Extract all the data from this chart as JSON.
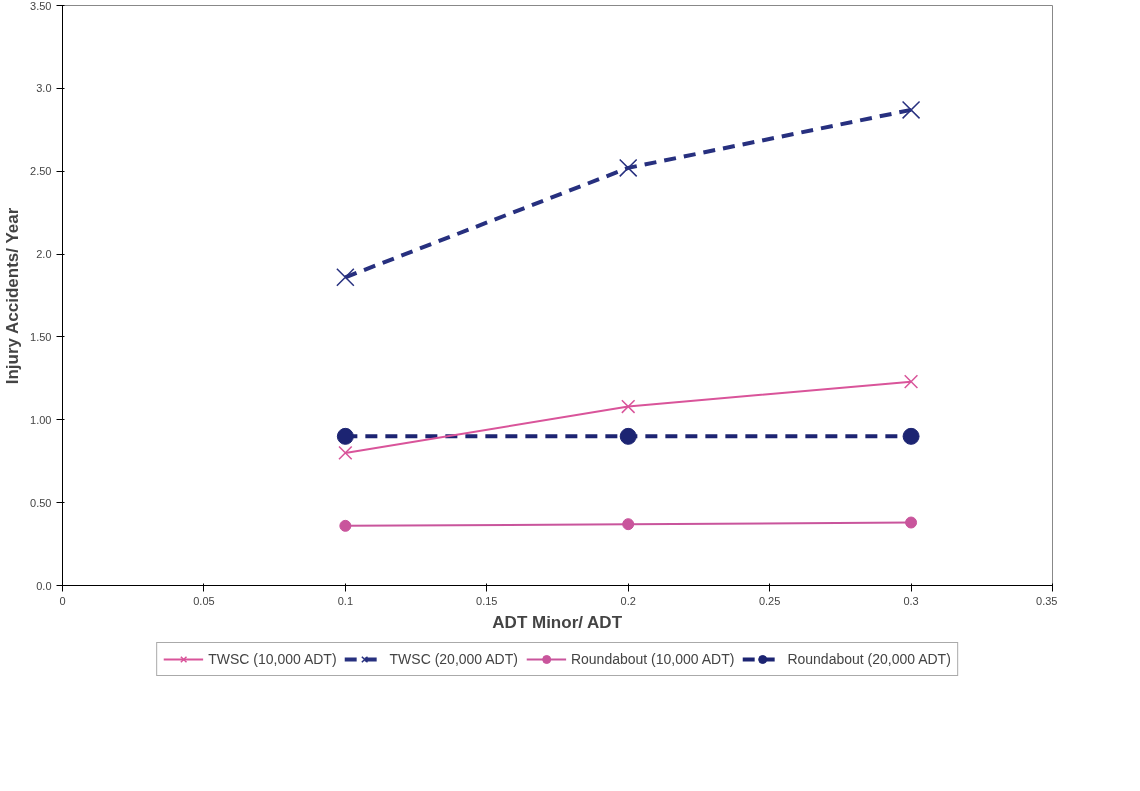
{
  "chart_data": {
    "type": "line",
    "xlabel": "ADT Minor/ ADT",
    "ylabel": "Injury Accidents/ Year",
    "x": [
      0.1,
      0.2,
      0.3
    ],
    "xlim": [
      0,
      0.35
    ],
    "xticks": [
      0,
      0.05,
      0.1,
      0.15,
      0.2,
      0.25,
      0.3,
      0.35
    ],
    "ylim": [
      0,
      3.5
    ],
    "yticks": [
      {
        "value": 0,
        "label": "0.0"
      },
      {
        "value": 0.5,
        "label": "0.50"
      },
      {
        "value": 1,
        "label": "1.00"
      },
      {
        "value": 1.5,
        "label": "1.50"
      },
      {
        "value": 2,
        "label": "2.0"
      },
      {
        "value": 2.5,
        "label": "2.50"
      },
      {
        "value": 3,
        "label": "3.0"
      },
      {
        "value": 3.5,
        "label": "3.50"
      }
    ],
    "grid": false,
    "legend": "bottom",
    "series": [
      {
        "name": "TWSC (10,000 ADT)",
        "color": "#d9549a",
        "values": [
          0.8,
          1.08,
          1.23
        ],
        "marker": "cross",
        "line_style": "solid"
      },
      {
        "name": "TWSC (20,000 ADT)",
        "color": "#27307f",
        "values": [
          1.86,
          2.52,
          2.87
        ],
        "marker": "cross",
        "line_style": "dashed"
      },
      {
        "name": "Roundabout (10,000 ADT)",
        "color": "#c9559c",
        "values": [
          0.36,
          0.37,
          0.38
        ],
        "marker": "circle",
        "line_style": "solid"
      },
      {
        "name": "Roundabout (20,000 ADT)",
        "color": "#1c2472",
        "values": [
          0.9,
          0.9,
          0.9
        ],
        "marker": "circle",
        "line_style": "dashed"
      }
    ]
  }
}
